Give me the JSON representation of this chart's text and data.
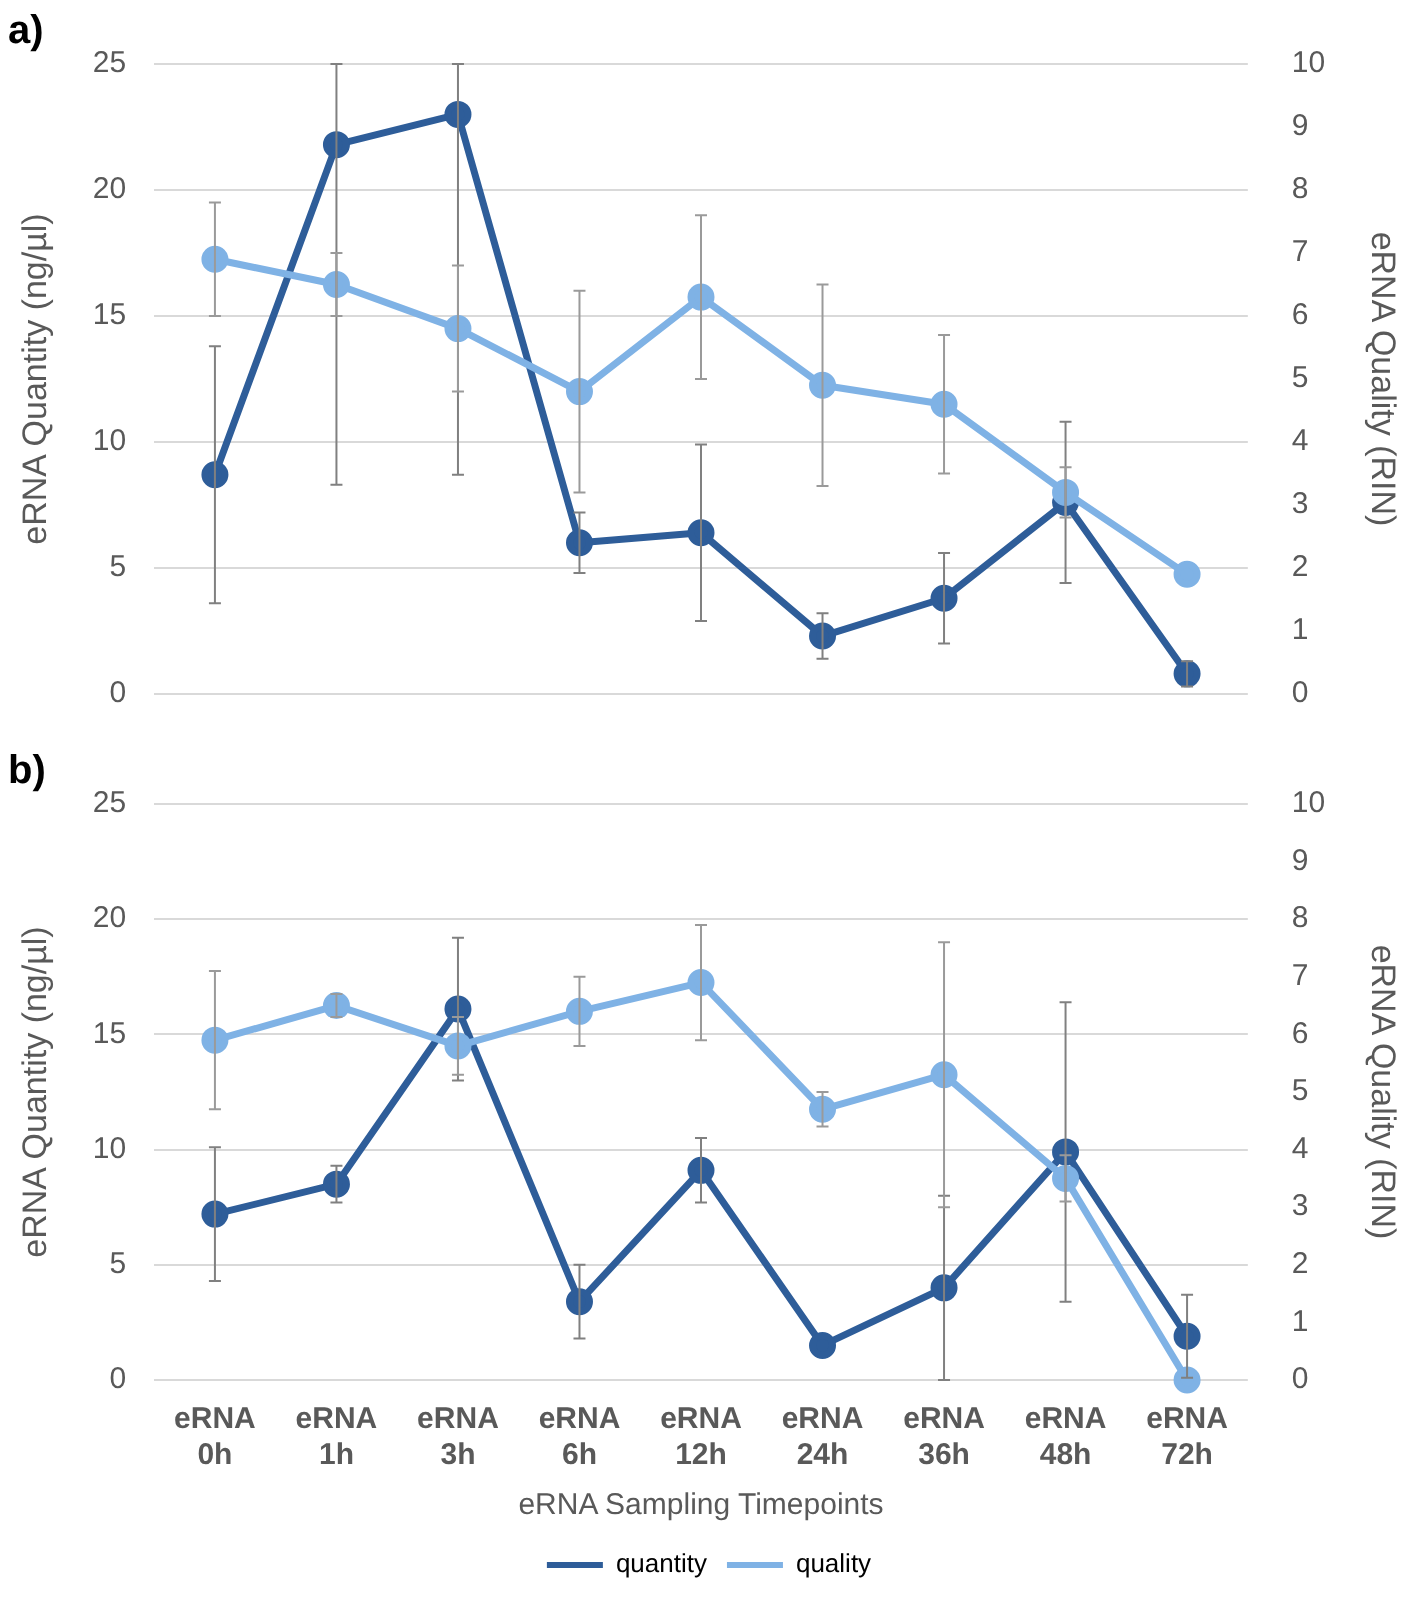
{
  "chart_data": [
    {
      "type": "line",
      "title": "a)",
      "ylabel": "eRNA Quantity (ng/µl)",
      "y2label": "eRNA Quality (RIN)",
      "categories": [
        null,
        null,
        null,
        null,
        null,
        null,
        null,
        null,
        null
      ],
      "series": [
        {
          "color": "#2e5d99",
          "values": [
            8.7,
            21.8,
            23.0,
            6.0,
            6.4,
            2.3,
            3.8,
            7.6,
            0.8
          ],
          "errors": [
            [
              3.6,
              13.8
            ],
            [
              8.3,
              25
            ],
            [
              8.7,
              25
            ],
            [
              4.8,
              7.2
            ],
            [
              2.9,
              9.9
            ],
            [
              1.4,
              3.2
            ],
            [
              2.0,
              5.6
            ],
            [
              4.4,
              10.8
            ],
            [
              0.3,
              1.3
            ]
          ]
        },
        {
          "color": "#7fb2e5",
          "axis": "y2",
          "values": [
            6.9,
            6.5,
            5.8,
            4.8,
            6.3,
            4.9,
            4.6,
            3.2,
            1.9
          ],
          "errors": [
            [
              6.0,
              7.8
            ],
            [
              6.0,
              7.0
            ],
            [
              4.8,
              6.8
            ],
            [
              3.2,
              6.4
            ],
            [
              5.0,
              7.6
            ],
            [
              3.3,
              6.5
            ],
            [
              3.5,
              5.7
            ],
            [
              2.8,
              3.6
            ],
            null
          ]
        }
      ],
      "ylim": [
        0,
        25
      ],
      "yticks": [
        0,
        5,
        10,
        15,
        20,
        25
      ],
      "y2lim": [
        0,
        10
      ],
      "y2ticks": [
        0,
        1,
        2,
        3,
        4,
        5,
        6,
        7,
        8,
        9,
        10
      ],
      "grid": "y",
      "marker": "circle",
      "tick_labels": "y"
    },
    {
      "type": "line",
      "title": "b)",
      "xlabel": "eRNA Sampling Timepoints",
      "ylabel": "eRNA Quantity (ng/µl)",
      "y2label": "eRNA Quality (RIN)",
      "categories": [
        "eRNA 0h",
        "eRNA 1h",
        "eRNA 3h",
        "eRNA 6h",
        "eRNA 12h",
        "eRNA 24h",
        "eRNA 36h",
        "eRNA 48h",
        "eRNA 72h"
      ],
      "series": [
        {
          "name": "quantity",
          "color": "#2e5d99",
          "values": [
            7.2,
            8.5,
            16.1,
            3.4,
            9.1,
            1.5,
            4.0,
            9.9,
            1.9
          ],
          "errors": [
            [
              4.3,
              10.1
            ],
            [
              7.7,
              9.3
            ],
            [
              13.0,
              19.2
            ],
            [
              1.8,
              5.0
            ],
            [
              7.7,
              10.5
            ],
            null,
            [
              0,
              8.0
            ],
            [
              3.4,
              16.4
            ],
            [
              0.1,
              3.7
            ]
          ]
        },
        {
          "name": "quality",
          "color": "#7fb2e5",
          "axis": "y2",
          "values": [
            5.9,
            6.5,
            5.8,
            6.4,
            6.9,
            4.7,
            5.3,
            3.5,
            0
          ],
          "errors": [
            [
              4.7,
              7.1
            ],
            [
              6.3,
              6.7
            ],
            [
              5.3,
              6.3
            ],
            [
              5.8,
              7.0
            ],
            [
              5.9,
              7.9
            ],
            [
              4.4,
              5.0
            ],
            [
              3.0,
              7.6
            ],
            [
              3.1,
              3.9
            ],
            null
          ]
        }
      ],
      "ylim": [
        0,
        25
      ],
      "yticks": [
        0,
        5,
        10,
        15,
        20,
        25
      ],
      "y2lim": [
        0,
        10
      ],
      "y2ticks": [
        0,
        1,
        2,
        3,
        4,
        5,
        6,
        7,
        8,
        9,
        10
      ],
      "grid": "y",
      "marker": "circle",
      "legend": "bottom"
    }
  ]
}
